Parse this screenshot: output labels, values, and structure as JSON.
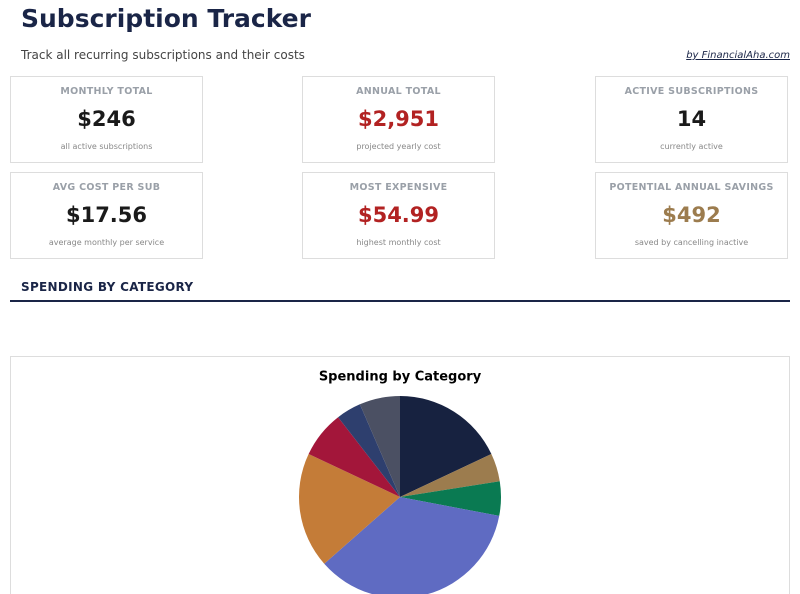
{
  "header": {
    "title": "Subscription Tracker",
    "subtitle": "Track all recurring subscriptions and their costs",
    "credit": "by FinancialAha.com"
  },
  "cards": [
    {
      "label": "MONTHLY TOTAL",
      "value": "$246",
      "note": "all active subscriptions"
    },
    {
      "label": "ANNUAL TOTAL",
      "value": "$2,951",
      "note": "projected yearly cost"
    },
    {
      "label": "ACTIVE SUBSCRIPTIONS",
      "value": "14",
      "note": "currently active"
    },
    {
      "label": "AVG COST PER SUB",
      "value": "$17.56",
      "note": "average monthly per service"
    },
    {
      "label": "MOST EXPENSIVE",
      "value": "$54.99",
      "note": "highest monthly cost"
    },
    {
      "label": "POTENTIAL ANNUAL SAVINGS",
      "value": "$492",
      "note": "saved by cancelling inactive"
    }
  ],
  "section_title": "SPENDING BY CATEGORY",
  "chart_data": {
    "type": "pie",
    "title": "Spending by Category",
    "values": [
      18,
      4.5,
      5.5,
      35.5,
      18.5,
      7.5,
      4,
      6.5
    ],
    "colors": [
      "#172240",
      "#9c7c4e",
      "#0a7a52",
      "#5f6bc2",
      "#c47c38",
      "#a3163a",
      "#2e3f6e",
      "#4b5063"
    ]
  }
}
